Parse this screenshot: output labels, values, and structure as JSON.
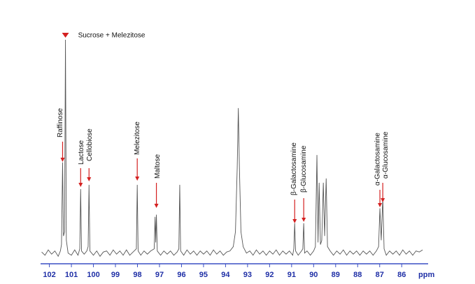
{
  "chart_data": {
    "type": "line",
    "x_label": "ppm",
    "color": "#555555",
    "axis_color": "#3a4fc4",
    "xlim": [
      102.4,
      84.8
    ],
    "ylim": [
      -5,
      100
    ],
    "xticks": [
      102,
      101,
      100,
      99,
      98,
      97,
      96,
      95,
      94,
      93,
      92,
      91,
      90,
      89,
      88,
      87,
      86
    ],
    "x": [
      102.35,
      102.2,
      102.05,
      101.9,
      101.75,
      101.6,
      101.5,
      101.45,
      101.4,
      101.36,
      101.31,
      101.27,
      101.23,
      101.15,
      101.0,
      100.85,
      100.7,
      100.62,
      100.58,
      100.54,
      100.42,
      100.3,
      100.24,
      100.2,
      100.16,
      100.0,
      99.85,
      99.7,
      99.55,
      99.4,
      99.25,
      99.1,
      98.95,
      98.8,
      98.65,
      98.5,
      98.35,
      98.2,
      98.05,
      98.01,
      97.97,
      97.85,
      97.7,
      97.55,
      97.4,
      97.24,
      97.2,
      97.17,
      97.14,
      97.1,
      96.95,
      96.8,
      96.65,
      96.5,
      96.35,
      96.2,
      96.12,
      96.08,
      96.04,
      95.9,
      95.75,
      95.6,
      95.45,
      95.3,
      95.15,
      95.0,
      94.85,
      94.7,
      94.55,
      94.4,
      94.25,
      94.1,
      93.95,
      93.8,
      93.65,
      93.55,
      93.47,
      93.42,
      93.37,
      93.3,
      93.2,
      93.05,
      92.9,
      92.75,
      92.6,
      92.45,
      92.3,
      92.15,
      92.0,
      91.85,
      91.7,
      91.55,
      91.4,
      91.25,
      91.1,
      90.95,
      90.9,
      90.86,
      90.82,
      90.7,
      90.55,
      90.49,
      90.45,
      90.41,
      90.3,
      90.15,
      90.0,
      89.92,
      89.85,
      89.8,
      89.75,
      89.69,
      89.63,
      89.56,
      89.5,
      89.43,
      89.37,
      89.25,
      89.1,
      88.95,
      88.8,
      88.65,
      88.5,
      88.35,
      88.2,
      88.05,
      87.9,
      87.75,
      87.6,
      87.45,
      87.3,
      87.15,
      87.05,
      86.99,
      86.93,
      86.86,
      86.8,
      86.7,
      86.55,
      86.4,
      86.25,
      86.1,
      85.95,
      85.8,
      85.65,
      85.5,
      85.35,
      85.2,
      85.05
    ],
    "values": [
      0.5,
      -1,
      1.5,
      -0.5,
      1,
      -1.5,
      1,
      4,
      42.5,
      8,
      10,
      100,
      6,
      0,
      -1,
      1.5,
      -1,
      2,
      30,
      1,
      -0.5,
      1,
      3,
      32,
      1,
      -1,
      1,
      -1.5,
      0.5,
      1,
      -1,
      1.5,
      -0.5,
      1,
      -1,
      1.5,
      -1,
      0.5,
      2,
      32,
      1,
      -1,
      1,
      -0.5,
      1,
      2,
      17,
      5,
      18,
      1,
      -1,
      1,
      -0.5,
      1,
      -1,
      0.5,
      2,
      32,
      1,
      -1,
      1.5,
      -0.5,
      1,
      -1,
      1,
      -0.5,
      1,
      -1,
      1.5,
      -0.5,
      1,
      -1,
      0.5,
      1,
      3,
      10,
      40,
      68,
      40,
      10,
      3,
      0,
      1,
      -1,
      1.5,
      -0.5,
      1,
      -1,
      1,
      -0.5,
      1.5,
      -1,
      1,
      -0.5,
      1,
      -1,
      2,
      14,
      1,
      -1,
      1,
      2,
      14,
      0,
      1,
      -1,
      1,
      3,
      46,
      5,
      33,
      4,
      6,
      33,
      8,
      35,
      3,
      1,
      -1,
      1,
      -0.5,
      1.5,
      -1,
      1,
      -0.5,
      1,
      -1,
      1,
      -0.5,
      1,
      -1,
      1,
      3,
      21,
      6,
      26,
      2,
      -1,
      1,
      -0.5,
      1,
      -1,
      1.5,
      -0.5,
      1,
      -1,
      1,
      0.5,
      1.5
    ],
    "peak_marker": {
      "text": "Sucrose + Melezitose",
      "x": 101.27,
      "color": "#d42020"
    },
    "annotations": [
      {
        "text": "Raffinose",
        "x": 101.4
      },
      {
        "text": "Lactose",
        "x": 100.58
      },
      {
        "text": "Cellobiose",
        "x": 100.2
      },
      {
        "text": "Melezitose",
        "x": 98.01
      },
      {
        "text": "Maltose",
        "x": 97.14
      },
      {
        "text": "β-Galactosamine",
        "x": 90.86
      },
      {
        "text": "β-Glucosamine",
        "x": 90.45
      },
      {
        "text": "α-Galactosamine",
        "x": 86.99
      },
      {
        "text": "α-Glucosamine",
        "x": 86.86
      }
    ],
    "annotation_color": "#d42020"
  }
}
